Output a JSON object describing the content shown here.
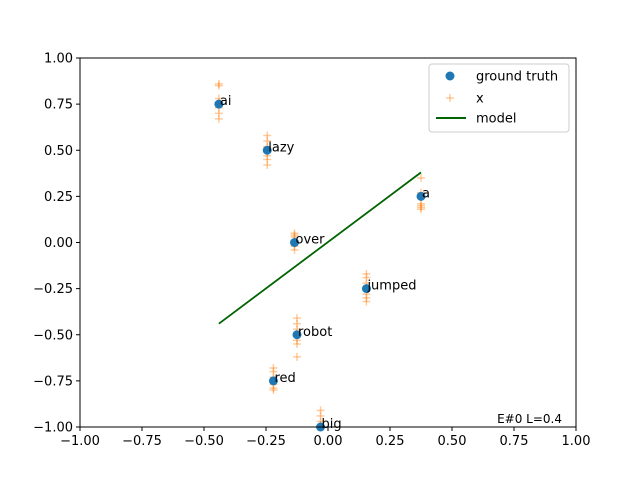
{
  "chart_data": {
    "type": "scatter",
    "xlim": [
      -1.0,
      1.0
    ],
    "ylim": [
      -1.0,
      1.0
    ],
    "xticks": [
      "−1.00",
      "−0.75",
      "−0.50",
      "−0.25",
      "0.00",
      "0.25",
      "0.50",
      "0.75",
      "1.00"
    ],
    "yticks": [
      "−1.00",
      "−0.75",
      "−0.50",
      "−0.25",
      "0.00",
      "0.25",
      "0.50",
      "0.75",
      "1.00"
    ],
    "xtick_values": [
      -1.0,
      -0.75,
      -0.5,
      -0.25,
      0.0,
      0.25,
      0.5,
      0.75,
      1.0
    ],
    "ytick_values": [
      -1.0,
      -0.75,
      -0.5,
      -0.25,
      0.0,
      0.25,
      0.5,
      0.75,
      1.0
    ],
    "grid": false,
    "legend": {
      "position": "top-right",
      "entries": [
        {
          "label": "ground truth",
          "marker": "circle",
          "color": "#1f77b4"
        },
        {
          "label": "x",
          "marker": "plus",
          "color": "#ff7f0e"
        },
        {
          "label": "model",
          "marker": "line",
          "color": "#006400"
        }
      ]
    },
    "annotation": "E#0 L=0.4",
    "ground_truth": [
      {
        "label": "ai",
        "x": -0.44,
        "y": 0.75
      },
      {
        "label": "lazy",
        "x": -0.245,
        "y": 0.5
      },
      {
        "label": "a",
        "x": 0.375,
        "y": 0.25
      },
      {
        "label": "over",
        "x": -0.135,
        "y": 0.0
      },
      {
        "label": "jumped",
        "x": 0.155,
        "y": -0.25
      },
      {
        "label": "robot",
        "x": -0.125,
        "y": -0.5
      },
      {
        "label": "red",
        "x": -0.22,
        "y": -0.75
      },
      {
        "label": "big",
        "x": -0.03,
        "y": -1.0
      }
    ],
    "samples": [
      {
        "x": -0.44,
        "y": 0.86
      },
      {
        "x": -0.44,
        "y": 0.85
      },
      {
        "x": -0.44,
        "y": 0.78
      },
      {
        "x": -0.44,
        "y": 0.76
      },
      {
        "x": -0.44,
        "y": 0.73
      },
      {
        "x": -0.44,
        "y": 0.7
      },
      {
        "x": -0.44,
        "y": 0.67
      },
      {
        "x": -0.245,
        "y": 0.58
      },
      {
        "x": -0.245,
        "y": 0.55
      },
      {
        "x": -0.245,
        "y": 0.52
      },
      {
        "x": -0.245,
        "y": 0.49
      },
      {
        "x": -0.245,
        "y": 0.47
      },
      {
        "x": -0.245,
        "y": 0.45
      },
      {
        "x": -0.245,
        "y": 0.42
      },
      {
        "x": 0.375,
        "y": 0.35
      },
      {
        "x": 0.375,
        "y": 0.27
      },
      {
        "x": 0.375,
        "y": 0.25
      },
      {
        "x": 0.375,
        "y": 0.21
      },
      {
        "x": 0.375,
        "y": 0.2
      },
      {
        "x": 0.375,
        "y": 0.19
      },
      {
        "x": 0.375,
        "y": 0.18
      },
      {
        "x": -0.135,
        "y": 0.05
      },
      {
        "x": -0.135,
        "y": 0.04
      },
      {
        "x": -0.135,
        "y": 0.03
      },
      {
        "x": -0.135,
        "y": 0.01
      },
      {
        "x": -0.135,
        "y": -0.01
      },
      {
        "x": -0.135,
        "y": -0.02
      },
      {
        "x": -0.135,
        "y": -0.04
      },
      {
        "x": 0.155,
        "y": -0.17
      },
      {
        "x": 0.155,
        "y": -0.19
      },
      {
        "x": 0.155,
        "y": -0.22
      },
      {
        "x": 0.155,
        "y": -0.25
      },
      {
        "x": 0.155,
        "y": -0.28
      },
      {
        "x": 0.155,
        "y": -0.3
      },
      {
        "x": 0.155,
        "y": -0.32
      },
      {
        "x": -0.125,
        "y": -0.41
      },
      {
        "x": -0.125,
        "y": -0.44
      },
      {
        "x": -0.125,
        "y": -0.47
      },
      {
        "x": -0.125,
        "y": -0.5
      },
      {
        "x": -0.125,
        "y": -0.53
      },
      {
        "x": -0.125,
        "y": -0.55
      },
      {
        "x": -0.125,
        "y": -0.62
      },
      {
        "x": -0.22,
        "y": -0.68
      },
      {
        "x": -0.22,
        "y": -0.7
      },
      {
        "x": -0.22,
        "y": -0.73
      },
      {
        "x": -0.22,
        "y": -0.75
      },
      {
        "x": -0.22,
        "y": -0.77
      },
      {
        "x": -0.22,
        "y": -0.79
      },
      {
        "x": -0.22,
        "y": -0.8
      },
      {
        "x": -0.03,
        "y": -0.91
      },
      {
        "x": -0.03,
        "y": -0.94
      },
      {
        "x": -0.03,
        "y": -0.97
      },
      {
        "x": -0.03,
        "y": -0.99
      }
    ],
    "model_line": [
      {
        "x": -0.44,
        "y": -0.44
      },
      {
        "x": 0.375,
        "y": 0.38
      }
    ],
    "colors": {
      "ground_truth": "#1f77b4",
      "samples": "#ff7f0e",
      "model": "#006400"
    }
  }
}
